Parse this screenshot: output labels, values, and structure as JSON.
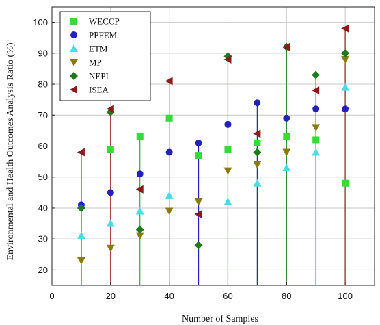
{
  "chart_data": {
    "type": "scatter",
    "title": "",
    "xlabel": "Number of Samples",
    "ylabel": "Environmental and Health Outcomes Analysis Ratio (%)",
    "xlim": [
      0,
      110
    ],
    "ylim": [
      15,
      105
    ],
    "xticks": [
      0,
      20,
      40,
      60,
      80,
      100
    ],
    "yticks": [
      20,
      30,
      40,
      50,
      60,
      70,
      80,
      90,
      100
    ],
    "grid": true,
    "legend_position": "top-left",
    "x": [
      10,
      20,
      30,
      40,
      50,
      60,
      70,
      80,
      90,
      100
    ],
    "series": [
      {
        "name": "WECCP",
        "marker": "square",
        "color": "#33dd33",
        "values": [
          null,
          59,
          63,
          69,
          57,
          59,
          61,
          63,
          62,
          48
        ]
      },
      {
        "name": "PPFEM",
        "marker": "circle",
        "color": "#2222bb",
        "values": [
          41,
          45,
          51,
          58,
          61,
          67,
          74,
          69,
          72,
          72
        ]
      },
      {
        "name": "ETM",
        "marker": "triangle-up",
        "color": "#44dde8",
        "values": [
          31,
          35,
          39,
          44,
          null,
          42,
          48,
          53,
          58,
          79
        ]
      },
      {
        "name": "MP",
        "marker": "triangle-down",
        "color": "#8a7a10",
        "values": [
          23,
          27,
          31,
          39,
          42,
          52,
          54,
          58,
          66,
          88
        ]
      },
      {
        "name": "NEPI",
        "marker": "diamond",
        "color": "#1f7a1f",
        "values": [
          40,
          71,
          33,
          null,
          28,
          89,
          58,
          92,
          83,
          90
        ]
      },
      {
        "name": "ISEA",
        "marker": "triangle-left",
        "color": "#8b1a1a",
        "values": [
          58,
          72,
          46,
          81,
          38,
          88,
          64,
          92,
          78,
          98
        ]
      }
    ]
  }
}
